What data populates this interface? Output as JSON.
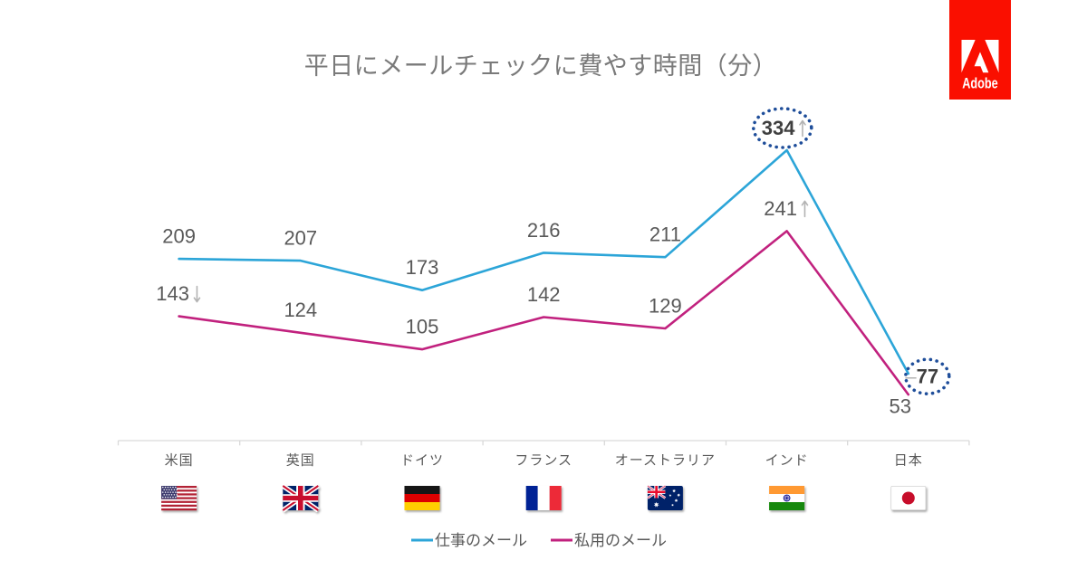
{
  "page": {
    "background": "#ffffff"
  },
  "header": {
    "title": "平日にメールチェックに費やす時間（分）",
    "title_color": "#7a7a7a"
  },
  "logo": {
    "brand": "Adobe",
    "label": "Adobe",
    "background": "#fa0f00",
    "mark_color": "#ffffff"
  },
  "chart_data": {
    "type": "line",
    "title": "平日にメールチェックに費やす時間（分）",
    "xlabel": "",
    "ylabel": "",
    "ylim": [
      0,
      380
    ],
    "grid": false,
    "legend_position": "bottom",
    "categories": [
      "米国",
      "英国",
      "ドイツ",
      "フランス",
      "オーストラリア",
      "インド",
      "日本"
    ],
    "category_flags": [
      "usa",
      "uk",
      "germany",
      "france",
      "australia",
      "india",
      "japan"
    ],
    "series": [
      {
        "name": "仕事のメール",
        "color": "#2ca5d8",
        "values": [
          209,
          207,
          173,
          216,
          211,
          334,
          77
        ],
        "labels": [
          {
            "text": "209"
          },
          {
            "text": "207"
          },
          {
            "text": "173"
          },
          {
            "text": "216"
          },
          {
            "text": "211"
          },
          {
            "text": "334",
            "arrow": "↑",
            "circled": true
          },
          {
            "text": "77",
            "prefix": "–",
            "circled": true,
            "position": "right"
          }
        ]
      },
      {
        "name": "私用のメール",
        "color": "#c1217e",
        "values": [
          143,
          124,
          105,
          142,
          129,
          241,
          53
        ],
        "labels": [
          {
            "text": "143",
            "arrow": "↓"
          },
          {
            "text": "124"
          },
          {
            "text": "105"
          },
          {
            "text": "142"
          },
          {
            "text": "129"
          },
          {
            "text": "241",
            "arrow": "↑"
          },
          {
            "text": "53",
            "position": "below"
          }
        ]
      }
    ],
    "colors": {
      "axis": "#d9d9d9",
      "label": "#595959",
      "category_label": "#595959",
      "arrow": "#b3b3b3",
      "circled_label": "#3f3f3f",
      "annotation_ring": "#1f4e9a",
      "legend_text": "#595959"
    }
  }
}
